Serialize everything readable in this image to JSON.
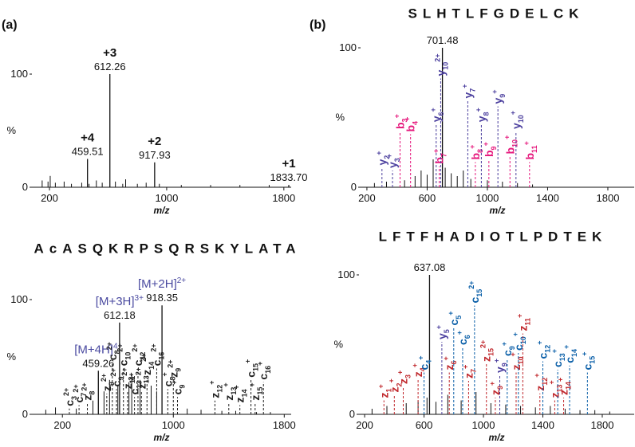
{
  "chart_data": [
    {
      "type": "bar",
      "panel_label": "(a)",
      "x_label": "m/z",
      "y_label": "%",
      "color": "#111111",
      "xlim": [
        80,
        1850
      ],
      "xticks": [
        200,
        1000,
        1800
      ],
      "ylim": [
        0,
        100
      ],
      "yticks": [
        0,
        100
      ],
      "x": [
        150,
        190,
        205,
        240,
        300,
        350,
        420,
        470,
        520,
        560,
        650,
        700,
        720,
        800,
        860,
        950,
        1100,
        1300,
        1500,
        1700
      ],
      "values": [
        6,
        5,
        10,
        4,
        5,
        3,
        4,
        3,
        6,
        4,
        5,
        3,
        7,
        3,
        4,
        3,
        2,
        2,
        2,
        2
      ],
      "precursors": [
        {
          "label": "+4",
          "x": 459.51,
          "value": 25,
          "color": "#111111"
        },
        {
          "label": "+3",
          "x": 612.26,
          "value": 100,
          "color": "#111111"
        },
        {
          "label": "+2",
          "x": 917.93,
          "value": 22,
          "color": "#111111"
        },
        {
          "label": "+1",
          "x": 1833.7,
          "x_label": "1833.70",
          "value": 2,
          "color": "#111111"
        }
      ],
      "ions": []
    },
    {
      "type": "bar",
      "panel_label": "(b)",
      "sequence": "SLHTLFGDELCK",
      "x_label": "m/z",
      "y_label": "%",
      "color": "#111111",
      "xlim": [
        158,
        1975
      ],
      "xticks": [
        200,
        600,
        1000,
        1400,
        1800
      ],
      "ylim": [
        0,
        100
      ],
      "yticks": [
        0,
        100
      ],
      "x": [
        250,
        330,
        450,
        520,
        560,
        600,
        640,
        720,
        760,
        800,
        840,
        890,
        1000,
        1100,
        1200,
        1300
      ],
      "values": [
        3,
        4,
        5,
        8,
        12,
        9,
        20,
        14,
        10,
        8,
        12,
        6,
        5,
        4,
        3,
        2
      ],
      "precursors": [
        {
          "x": 701.48,
          "value": 100,
          "color": "#111111"
        }
      ],
      "ions": [
        {
          "ion": "y",
          "sub": "2",
          "sup": "+",
          "x": 300,
          "value": 14,
          "color": "#4b3f9e"
        },
        {
          "ion": "y",
          "sub": "3",
          "sup": "+",
          "x": 370,
          "value": 12,
          "color": "#4b3f9e"
        },
        {
          "ion": "b",
          "sub": "3",
          "sup": "+",
          "x": 420,
          "value": 40,
          "color": "#e6197d"
        },
        {
          "ion": "b",
          "sub": "4",
          "sup": "+",
          "x": 490,
          "value": 38,
          "color": "#e6197d"
        },
        {
          "ion": "y",
          "sub": "6",
          "sup": "+",
          "x": 660,
          "value": 45,
          "color": "#4b3f9e"
        },
        {
          "ion": "b",
          "sub": "7",
          "sup": "+",
          "x": 680,
          "value": 15,
          "color": "#e6197d"
        },
        {
          "ion": "y",
          "sub": "10",
          "sup": "2+",
          "x": 690,
          "value": 78,
          "color": "#4b3f9e"
        },
        {
          "ion": "y",
          "sub": "7",
          "sup": "+",
          "x": 870,
          "value": 62,
          "color": "#4b3f9e"
        },
        {
          "ion": "b",
          "sub": "8",
          "sup": "+",
          "x": 920,
          "value": 18,
          "color": "#e6197d"
        },
        {
          "ion": "y",
          "sub": "8",
          "sup": "+",
          "x": 960,
          "value": 45,
          "color": "#4b3f9e"
        },
        {
          "ion": "b",
          "sub": "9",
          "sup": "+",
          "x": 1010,
          "value": 20,
          "color": "#e6197d"
        },
        {
          "ion": "y",
          "sub": "9",
          "sup": "+",
          "x": 1070,
          "value": 58,
          "color": "#4b3f9e"
        },
        {
          "ion": "b",
          "sub": "10",
          "sup": "+",
          "x": 1150,
          "value": 22,
          "color": "#e6197d"
        },
        {
          "ion": "y",
          "sub": "10",
          "sup": "+",
          "x": 1190,
          "value": 40,
          "color": "#4b3f9e"
        },
        {
          "ion": "b",
          "sub": "11",
          "sup": "+",
          "x": 1280,
          "value": 18,
          "color": "#e6197d"
        }
      ]
    },
    {
      "type": "bar",
      "sequence": "AcASQKRPSQRSKYLATA",
      "x_label": "m/z",
      "y_label": "%",
      "color": "#111111",
      "xlim": [
        -20,
        1850
      ],
      "xticks": [
        200,
        1000,
        1800
      ],
      "ylim": [
        0,
        100
      ],
      "yticks": [
        0,
        100
      ],
      "x": [
        80,
        150,
        300,
        420,
        500,
        540,
        600,
        680,
        700,
        760,
        840,
        880,
        1100,
        1200,
        1350,
        1450,
        1600,
        1700
      ],
      "values": [
        4,
        6,
        5,
        12,
        20,
        30,
        25,
        28,
        35,
        30,
        25,
        20,
        5,
        4,
        3,
        3,
        2,
        2
      ],
      "precursors": [
        {
          "label": "[M+4H]",
          "sup": "4+",
          "x": 459.26,
          "value": 38,
          "color": "#4a4aa0"
        },
        {
          "label": "[M+3H]",
          "sup": "3+",
          "x": 612.18,
          "value": 80,
          "color": "#4a4aa0"
        },
        {
          "label": "[M+2H]",
          "sup": "2+",
          "x": 918.35,
          "value": 95,
          "color": "#4a4aa0"
        }
      ],
      "ions": [
        {
          "ion": "c",
          "sub": "3",
          "sup": "2+",
          "x": 250,
          "value": 5,
          "color": "#222222"
        },
        {
          "ion": "c",
          "sub": "7",
          "sup": "2+",
          "x": 320,
          "value": 8,
          "color": "#222222"
        },
        {
          "ion": "z",
          "sub": "8",
          "sup": "2+",
          "x": 380,
          "value": 10,
          "color": "#222222"
        },
        {
          "ion": "z",
          "sub": "9",
          "sup": "2+",
          "x": 520,
          "value": 18,
          "color": "#222222"
        },
        {
          "ion": "c",
          "sub": "8",
          "sup": "2+",
          "x": 560,
          "value": 45,
          "color": "#222222"
        },
        {
          "ion": "c",
          "sub": "9",
          "sup": "2+",
          "x": 590,
          "value": 22,
          "color": "#222222"
        },
        {
          "ion": "c",
          "sub": "10",
          "sup": "2+",
          "x": 640,
          "value": 40,
          "color": "#222222"
        },
        {
          "ion": "z",
          "sub": "11",
          "sup": "2+",
          "x": 670,
          "value": 20,
          "color": "#222222"
        },
        {
          "ion": "c",
          "sub": "13",
          "sup": "2+",
          "x": 720,
          "value": 15,
          "color": "#222222"
        },
        {
          "ion": "c",
          "sub": "12",
          "sup": "2+",
          "x": 745,
          "value": 40,
          "color": "#222222"
        },
        {
          "ion": "z",
          "sub": "13",
          "sup": "2+",
          "x": 770,
          "value": 20,
          "color": "#222222"
        },
        {
          "ion": "z",
          "sub": "14",
          "sup": "2+",
          "x": 810,
          "value": 32,
          "color": "#222222"
        },
        {
          "ion": "c",
          "sub": "16",
          "sup": "2+",
          "x": 880,
          "value": 40,
          "color": "#222222"
        },
        {
          "ion": "c",
          "sub": "8",
          "sup": "+",
          "x": 960,
          "value": 22,
          "color": "#222222"
        },
        {
          "ion": "z",
          "sub": "9",
          "sup": "2+",
          "x": 1000,
          "value": 30,
          "color": "#222222"
        },
        {
          "ion": "c",
          "sub": "9",
          "sup": "+",
          "x": 1030,
          "value": 15,
          "color": "#222222"
        },
        {
          "ion": "z",
          "sub": "12",
          "sup": "+",
          "x": 1300,
          "value": 12,
          "color": "#222222"
        },
        {
          "ion": "z",
          "sub": "13",
          "sup": "+",
          "x": 1400,
          "value": 10,
          "color": "#222222"
        },
        {
          "ion": "z",
          "sub": "14",
          "sup": "+",
          "x": 1480,
          "value": 8,
          "color": "#222222"
        },
        {
          "ion": "c",
          "sub": "15",
          "sup": "+",
          "x": 1560,
          "value": 30,
          "color": "#222222"
        },
        {
          "ion": "z",
          "sub": "15",
          "sup": "+",
          "x": 1590,
          "value": 10,
          "color": "#222222"
        },
        {
          "ion": "c",
          "sub": "16",
          "sup": "+",
          "x": 1650,
          "value": 28,
          "color": "#222222"
        }
      ]
    },
    {
      "type": "bar",
      "sequence": "LFTFHADIOTLPDTEK",
      "x_label": "m/z",
      "y_label": "%",
      "color": "#111111",
      "xlim": [
        162,
        2015
      ],
      "xticks": [
        200,
        600,
        1000,
        1400,
        1800
      ],
      "ylim": [
        0,
        100
      ],
      "yticks": [
        0,
        100
      ],
      "x": [
        250,
        350,
        480,
        560,
        620,
        680,
        760,
        850,
        950,
        1050,
        1150,
        1250,
        1350,
        1450,
        1550,
        1650,
        1750,
        1850
      ],
      "values": [
        4,
        6,
        8,
        10,
        12,
        9,
        14,
        10,
        16,
        8,
        7,
        6,
        5,
        6,
        4,
        3,
        3,
        2
      ],
      "precursors": [
        {
          "x": 637.08,
          "value": 100,
          "color": "#111111"
        }
      ],
      "ions": [
        {
          "ion": "z",
          "sub": "1",
          "sup": "+",
          "x": 330,
          "value": 10,
          "color": "#c0282d"
        },
        {
          "ion": "z",
          "sub": "2",
          "sup": "+",
          "x": 400,
          "value": 14,
          "color": "#c0282d"
        },
        {
          "ion": "z",
          "sub": "3",
          "sup": "+",
          "x": 460,
          "value": 20,
          "color": "#c0282d"
        },
        {
          "ion": "z",
          "sub": "4",
          "sup": "+",
          "x": 560,
          "value": 25,
          "color": "#c0282d"
        },
        {
          "ion": "c",
          "sub": "4",
          "sup": "+",
          "x": 600,
          "value": 30,
          "color": "#0a5fa8"
        },
        {
          "ion": "y",
          "sub": "5",
          "sup": "+",
          "x": 720,
          "value": 52,
          "color": "#4b3f9e"
        },
        {
          "ion": "z",
          "sub": "6",
          "sup": "+",
          "x": 770,
          "value": 30,
          "color": "#c0282d"
        },
        {
          "ion": "c",
          "sub": "5",
          "sup": "+",
          "x": 800,
          "value": 62,
          "color": "#0a5fa8"
        },
        {
          "ion": "c",
          "sub": "6",
          "sup": "+",
          "x": 860,
          "value": 48,
          "color": "#0a5fa8"
        },
        {
          "ion": "z",
          "sub": "7",
          "sup": "+",
          "x": 900,
          "value": 24,
          "color": "#c0282d"
        },
        {
          "ion": "c",
          "sub": "15",
          "sup": "2+",
          "x": 940,
          "value": 78,
          "color": "#0a5fa8"
        },
        {
          "ion": "z",
          "sub": "15",
          "sup": "2+",
          "x": 1020,
          "value": 36,
          "color": "#c0282d"
        },
        {
          "ion": "z",
          "sub": "9",
          "sup": "+",
          "x": 1080,
          "value": 12,
          "color": "#c0282d"
        },
        {
          "ion": "y",
          "sub": "9",
          "sup": "+",
          "x": 1110,
          "value": 28,
          "color": "#4b3f9e"
        },
        {
          "ion": "c",
          "sub": "9",
          "sup": "+",
          "x": 1160,
          "value": 40,
          "color": "#0a5fa8"
        },
        {
          "ion": "z",
          "sub": "10",
          "sup": "+",
          "x": 1220,
          "value": 30,
          "color": "#c0282d"
        },
        {
          "ion": "c",
          "sub": "10",
          "sup": "+",
          "x": 1235,
          "value": 44,
          "color": "#0a5fa8"
        },
        {
          "ion": "z",
          "sub": "11",
          "sup": "+",
          "x": 1265,
          "value": 58,
          "color": "#c0282d"
        },
        {
          "ion": "z",
          "sub": "12",
          "sup": "+",
          "x": 1380,
          "value": 15,
          "color": "#c0282d"
        },
        {
          "ion": "c",
          "sub": "12",
          "sup": "+",
          "x": 1400,
          "value": 38,
          "color": "#0a5fa8"
        },
        {
          "ion": "z",
          "sub": "13",
          "sup": "+",
          "x": 1480,
          "value": 10,
          "color": "#c0282d"
        },
        {
          "ion": "c",
          "sub": "13",
          "sup": "+",
          "x": 1500,
          "value": 32,
          "color": "#0a5fa8"
        },
        {
          "ion": "z",
          "sub": "14",
          "sup": "+",
          "x": 1540,
          "value": 12,
          "color": "#c0282d"
        },
        {
          "ion": "c",
          "sub": "14",
          "sup": "+",
          "x": 1580,
          "value": 35,
          "color": "#0a5fa8"
        },
        {
          "ion": "c",
          "sub": "15",
          "sup": "+",
          "x": 1700,
          "value": 30,
          "color": "#0a5fa8"
        }
      ]
    }
  ]
}
